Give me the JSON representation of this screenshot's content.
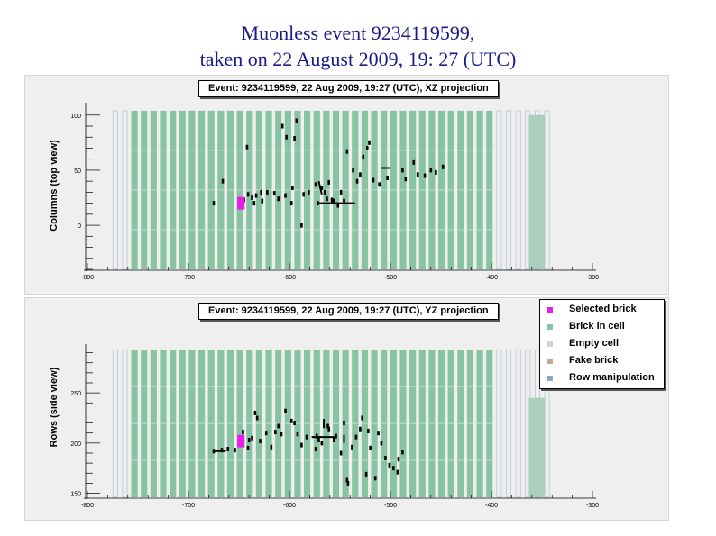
{
  "page_title_line1": "Muonless event 9234119599,",
  "page_title_line2": "taken on 22 August 2009, 19: 27 (UTC)",
  "colors": {
    "brick_in_cell": "#88c4a2",
    "selected_brick": "#e81ee8",
    "empty_cell": "#d4d4d4",
    "fake_brick": "#c8a888",
    "row_manipulation": "#8aa8c8",
    "module": "#a9cfbf",
    "hits": "#000000",
    "panel_bg": "#efefef"
  },
  "legend": {
    "items": [
      {
        "label": "Selected brick",
        "color_key": "selected_brick"
      },
      {
        "label": "Brick in cell",
        "color_key": "brick_in_cell"
      },
      {
        "label": "Empty cell",
        "color_key": "empty_cell"
      },
      {
        "label": "Fake brick",
        "color_key": "fake_brick"
      },
      {
        "label": "Row manipulation",
        "color_key": "row_manipulation"
      }
    ]
  },
  "chart_data": [
    {
      "type": "scatter",
      "title": "Event: 9234119599, 22 Aug 2009, 19:27 (UTC), XZ projection",
      "xlabel": "",
      "ylabel": "Columns (top view)",
      "xlim": [
        -800,
        -300
      ],
      "ylim": [
        -40,
        108
      ],
      "x_ticks": [
        -800,
        -700,
        -600,
        -500,
        -400,
        -300
      ],
      "y_ticks": [
        0,
        50,
        100
      ],
      "walls": {
        "x_start": -772.5,
        "x_step": 9.5,
        "count": 46,
        "filled_from": -757,
        "filled_to": -402,
        "y_range": [
          -40,
          104
        ]
      },
      "selected_brick": {
        "x": -648,
        "y": 20
      },
      "module": {
        "x_range": [
          -363,
          -347
        ],
        "y_range": [
          -40,
          100
        ]
      },
      "hits": [
        {
          "x": -675,
          "y": 20
        },
        {
          "x": -666,
          "y": 40
        },
        {
          "x": -645,
          "y": 23
        },
        {
          "x": -642,
          "y": 71
        },
        {
          "x": -641,
          "y": 28
        },
        {
          "x": -637,
          "y": 25
        },
        {
          "x": -635,
          "y": 20
        },
        {
          "x": -633,
          "y": 27
        },
        {
          "x": -628,
          "y": 30
        },
        {
          "x": -627,
          "y": 22
        },
        {
          "x": -622,
          "y": 30
        },
        {
          "x": -615,
          "y": 29
        },
        {
          "x": -611,
          "y": 24
        },
        {
          "x": -607,
          "y": 90
        },
        {
          "x": -604,
          "y": 27
        },
        {
          "x": -603,
          "y": 80
        },
        {
          "x": -598,
          "y": 20
        },
        {
          "x": -597,
          "y": 34
        },
        {
          "x": -595,
          "y": 79
        },
        {
          "x": -593,
          "y": 95
        },
        {
          "x": -588,
          "y": 0
        },
        {
          "x": -586,
          "y": 28
        },
        {
          "x": -581,
          "y": 30
        },
        {
          "x": -574,
          "y": 37
        },
        {
          "x": -572,
          "y": 20
        },
        {
          "x": -568,
          "y": 34
        },
        {
          "x": -565,
          "y": 30
        },
        {
          "x": -563,
          "y": 24
        },
        {
          "x": -561,
          "y": 39
        },
        {
          "x": -558,
          "y": 23
        },
        {
          "x": -556,
          "y": 22
        },
        {
          "x": -552,
          "y": 18
        },
        {
          "x": -549,
          "y": 30
        },
        {
          "x": -546,
          "y": 22
        },
        {
          "x": -543,
          "y": 67
        },
        {
          "x": -537,
          "y": 50
        },
        {
          "x": -533,
          "y": 40
        },
        {
          "x": -530,
          "y": 46
        },
        {
          "x": -527,
          "y": 62
        },
        {
          "x": -523,
          "y": 70
        },
        {
          "x": -521,
          "y": 75
        },
        {
          "x": -517,
          "y": 41
        },
        {
          "x": -511,
          "y": 37
        },
        {
          "x": -503,
          "y": 43
        },
        {
          "x": -488,
          "y": 50
        },
        {
          "x": -485,
          "y": 42
        },
        {
          "x": -477,
          "y": 57
        },
        {
          "x": -473,
          "y": 46
        },
        {
          "x": -466,
          "y": 45
        },
        {
          "x": -460,
          "y": 50
        },
        {
          "x": -455,
          "y": 48
        },
        {
          "x": -448,
          "y": 53
        }
      ],
      "segments": [
        {
          "x1": -573,
          "y1": 20,
          "x2": -535,
          "y2": 20
        },
        {
          "x1": -571,
          "y1": 40,
          "x2": -568,
          "y2": 28
        },
        {
          "x1": -509,
          "y1": 52,
          "x2": -500,
          "y2": 52
        }
      ]
    },
    {
      "type": "scatter",
      "title": "Event: 9234119599, 22 Aug 2009, 19:27 (UTC), YZ projection",
      "xlabel": "",
      "ylabel": "Rows (side view)",
      "xlim": [
        -800,
        -300
      ],
      "ylim": [
        146,
        295
      ],
      "x_ticks": [
        -800,
        -700,
        -600,
        -500,
        -400,
        -300
      ],
      "y_ticks": [
        150,
        200,
        250
      ],
      "walls": {
        "x_start": -772.5,
        "x_step": 9.5,
        "count": 46,
        "filled_from": -757,
        "filled_to": -402,
        "y_range": [
          146,
          293
        ]
      },
      "selected_brick": {
        "x": -648,
        "y": 202
      },
      "module": {
        "x_range": [
          -363,
          -347
        ],
        "y_range": [
          146,
          245
        ]
      },
      "hits": [
        {
          "x": -675,
          "y": 192
        },
        {
          "x": -667,
          "y": 193
        },
        {
          "x": -661,
          "y": 194
        },
        {
          "x": -654,
          "y": 193
        },
        {
          "x": -646,
          "y": 211
        },
        {
          "x": -641,
          "y": 195
        },
        {
          "x": -640,
          "y": 203
        },
        {
          "x": -637,
          "y": 205
        },
        {
          "x": -634,
          "y": 230
        },
        {
          "x": -632,
          "y": 225
        },
        {
          "x": -629,
          "y": 202
        },
        {
          "x": -623,
          "y": 210
        },
        {
          "x": -618,
          "y": 196
        },
        {
          "x": -614,
          "y": 211
        },
        {
          "x": -611,
          "y": 217
        },
        {
          "x": -608,
          "y": 209
        },
        {
          "x": -604,
          "y": 232
        },
        {
          "x": -598,
          "y": 222
        },
        {
          "x": -595,
          "y": 220
        },
        {
          "x": -592,
          "y": 209
        },
        {
          "x": -588,
          "y": 198
        },
        {
          "x": -583,
          "y": 206
        },
        {
          "x": -574,
          "y": 194
        },
        {
          "x": -573,
          "y": 207
        },
        {
          "x": -571,
          "y": 203
        },
        {
          "x": -568,
          "y": 200
        },
        {
          "x": -562,
          "y": 217
        },
        {
          "x": -561,
          "y": 214
        },
        {
          "x": -556,
          "y": 203
        },
        {
          "x": -554,
          "y": 207
        },
        {
          "x": -549,
          "y": 190
        },
        {
          "x": -546,
          "y": 220
        },
        {
          "x": -543,
          "y": 163
        },
        {
          "x": -542,
          "y": 160
        },
        {
          "x": -538,
          "y": 196
        },
        {
          "x": -534,
          "y": 206
        },
        {
          "x": -530,
          "y": 214
        },
        {
          "x": -528,
          "y": 225
        },
        {
          "x": -524,
          "y": 169
        },
        {
          "x": -522,
          "y": 212
        },
        {
          "x": -520,
          "y": 195
        },
        {
          "x": -515,
          "y": 165
        },
        {
          "x": -512,
          "y": 210
        },
        {
          "x": -509,
          "y": 200
        },
        {
          "x": -505,
          "y": 185
        },
        {
          "x": -501,
          "y": 178
        },
        {
          "x": -497,
          "y": 175
        },
        {
          "x": -493,
          "y": 171
        },
        {
          "x": -492,
          "y": 184
        },
        {
          "x": -488,
          "y": 191
        }
      ],
      "segments": [
        {
          "x1": -675,
          "y1": 192,
          "x2": -663,
          "y2": 192
        },
        {
          "x1": -578,
          "y1": 206,
          "x2": -555,
          "y2": 206
        },
        {
          "x1": -566,
          "y1": 224,
          "x2": -566,
          "y2": 215
        },
        {
          "x1": -546,
          "y1": 208,
          "x2": -546,
          "y2": 200
        }
      ]
    }
  ]
}
